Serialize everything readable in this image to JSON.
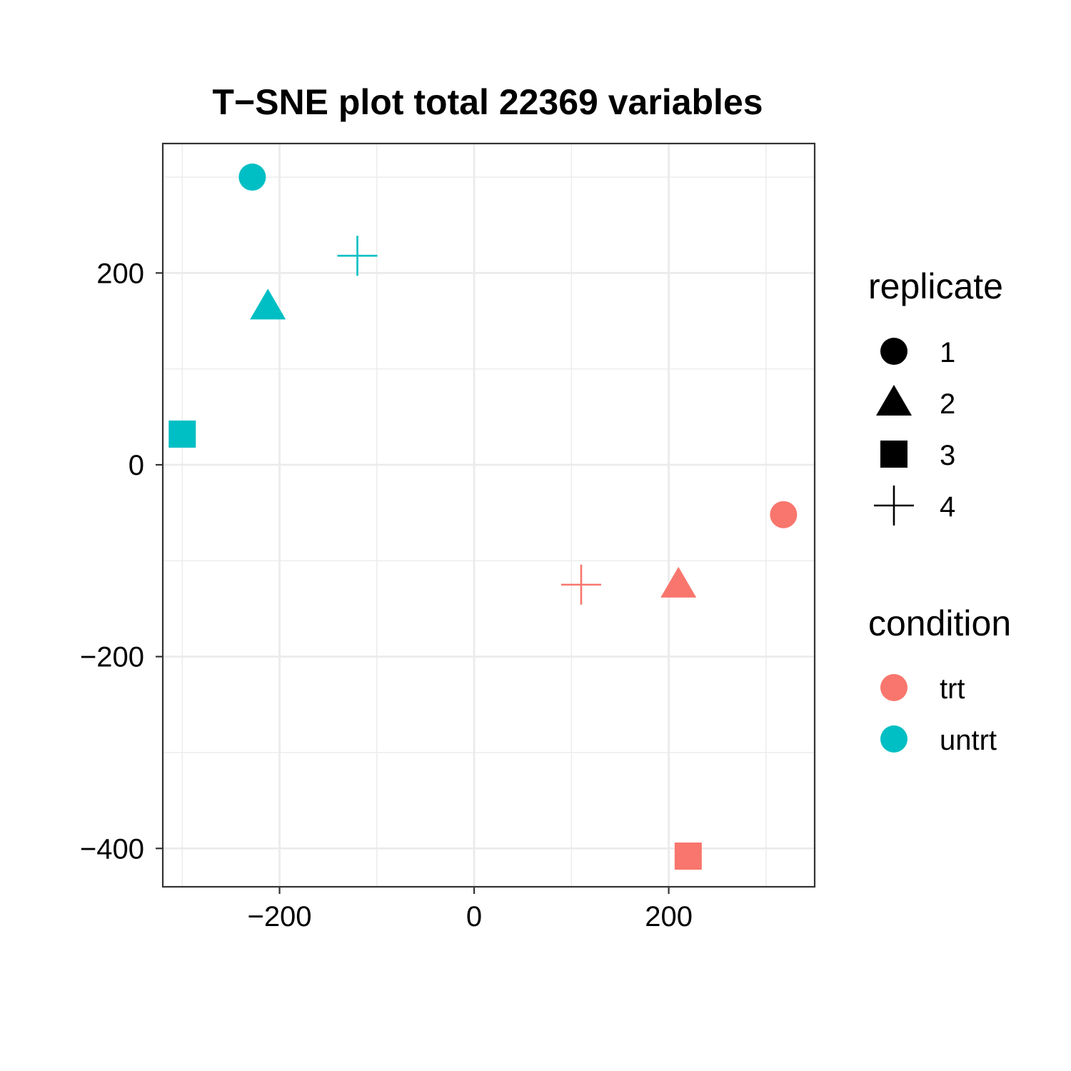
{
  "chart_data": {
    "type": "scatter",
    "title": "T−SNE plot total 22369 variables",
    "xlabel": "",
    "ylabel": "",
    "xlim": [
      -320,
      350
    ],
    "ylim": [
      -440,
      335
    ],
    "x_ticks": [
      {
        "value": -200,
        "label": "−200"
      },
      {
        "value": 0,
        "label": "0"
      },
      {
        "value": 200,
        "label": "200"
      }
    ],
    "y_ticks": [
      {
        "value": 200,
        "label": "200"
      },
      {
        "value": 0,
        "label": "0"
      },
      {
        "value": -200,
        "label": "−200"
      },
      {
        "value": -400,
        "label": "−400"
      }
    ],
    "grid": true,
    "points": [
      {
        "x": -228,
        "y": 300,
        "replicate": "1",
        "condition": "untrt"
      },
      {
        "x": -212,
        "y": 165,
        "replicate": "2",
        "condition": "untrt"
      },
      {
        "x": -300,
        "y": 32,
        "replicate": "3",
        "condition": "untrt"
      },
      {
        "x": -120,
        "y": 218,
        "replicate": "4",
        "condition": "untrt"
      },
      {
        "x": 318,
        "y": -52,
        "replicate": "1",
        "condition": "trt"
      },
      {
        "x": 210,
        "y": -125,
        "replicate": "2",
        "condition": "trt"
      },
      {
        "x": 220,
        "y": -408,
        "replicate": "3",
        "condition": "trt"
      },
      {
        "x": 110,
        "y": -125,
        "replicate": "4",
        "condition": "trt"
      }
    ],
    "legend": {
      "placement": "right",
      "shape": {
        "title": "replicate",
        "entries": [
          {
            "label": "1",
            "shape": "circle"
          },
          {
            "label": "2",
            "shape": "triangle"
          },
          {
            "label": "3",
            "shape": "square"
          },
          {
            "label": "4",
            "shape": "plus"
          }
        ]
      },
      "color": {
        "title": "condition",
        "entries": [
          {
            "label": "trt",
            "color": "#F8766D"
          },
          {
            "label": "untrt",
            "color": "#00BFC4"
          }
        ]
      }
    }
  }
}
